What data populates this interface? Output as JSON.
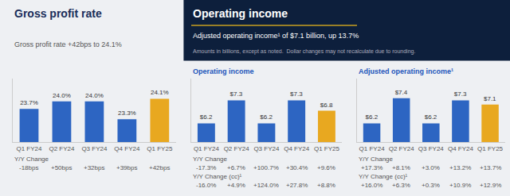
{
  "chart_data": [
    {
      "type": "bar",
      "title": "Gross profit rate",
      "subtitle": "Gross profit rate +42bps to 24.1%",
      "categories": [
        "Q1 FY24",
        "Q2 FY24",
        "Q3 FY24",
        "Q4 FY24",
        "Q1 FY25"
      ],
      "values": [
        23.7,
        24.0,
        24.0,
        23.3,
        24.1
      ],
      "value_labels": [
        "23.7%",
        "24.0%",
        "24.0%",
        "23.3%",
        "24.1%"
      ],
      "colors": [
        "#2D65C2",
        "#2D65C2",
        "#2D65C2",
        "#2D65C2",
        "#E8A820"
      ],
      "data_labels": true,
      "ylim": [
        22.4,
        24.9
      ],
      "tick_labels": "x",
      "grid": false,
      "rows": [
        {
          "label": "Y/Y Change",
          "values": [
            "-18bps",
            "+50bps",
            "+32bps",
            "+39bps",
            "+42bps"
          ]
        }
      ]
    },
    {
      "type": "bar",
      "title": "Operating income",
      "annotations": [
        "Operating income",
        "Adjusted operating income¹ of $7.1 billion, up 13.7%",
        "Amounts in billions, except as noted.  Dollar changes may not recalculate due to rounding."
      ],
      "categories": [
        "Q1 FY24",
        "Q2 FY24",
        "Q3 FY24",
        "Q4 FY24",
        "Q1 FY25"
      ],
      "values": [
        6.2,
        7.3,
        6.2,
        7.3,
        6.8
      ],
      "value_labels": [
        "$6.2",
        "$7.3",
        "$6.2",
        "$7.3",
        "$6.8"
      ],
      "colors": [
        "#2D65C2",
        "#2D65C2",
        "#2D65C2",
        "#2D65C2",
        "#E8A820"
      ],
      "data_labels": true,
      "ylim": [
        5.3,
        8.35
      ],
      "tick_labels": "x",
      "grid": false,
      "rows": [
        {
          "label": "Y/Y Change",
          "values": [
            "-17.3%",
            "+6.7%",
            "+100.7%",
            "+30.4%",
            "+9.6%"
          ]
        },
        {
          "label": "Y/Y Change (cc)¹",
          "values": [
            "-16.0%",
            "+4.9%",
            "+124.0%",
            "+27.8%",
            "+8.8%"
          ]
        }
      ]
    },
    {
      "type": "bar",
      "title": "Adjusted operating income¹",
      "categories": [
        "Q1 FY24",
        "Q2 FY24",
        "Q3 FY24",
        "Q4 FY24",
        "Q1 FY25"
      ],
      "values": [
        6.2,
        7.4,
        6.2,
        7.3,
        7.1
      ],
      "value_labels": [
        "$6.2",
        "$7.4",
        "$6.2",
        "$7.3",
        "$7.1"
      ],
      "colors": [
        "#2D65C2",
        "#2D65C2",
        "#2D65C2",
        "#2D65C2",
        "#E8A820"
      ],
      "data_labels": true,
      "ylim": [
        5.3,
        8.35
      ],
      "tick_labels": "x",
      "grid": false,
      "rows": [
        {
          "label": "Y/Y Change",
          "values": [
            "+17.3%",
            "+8.1%",
            "+3.0%",
            "+13.2%",
            "+13.7%"
          ]
        },
        {
          "label": "Y/Y Change (cc)¹",
          "values": [
            "+16.0%",
            "+6.3%",
            "+0.3%",
            "+10.9%",
            "+12.9%"
          ]
        }
      ]
    }
  ]
}
